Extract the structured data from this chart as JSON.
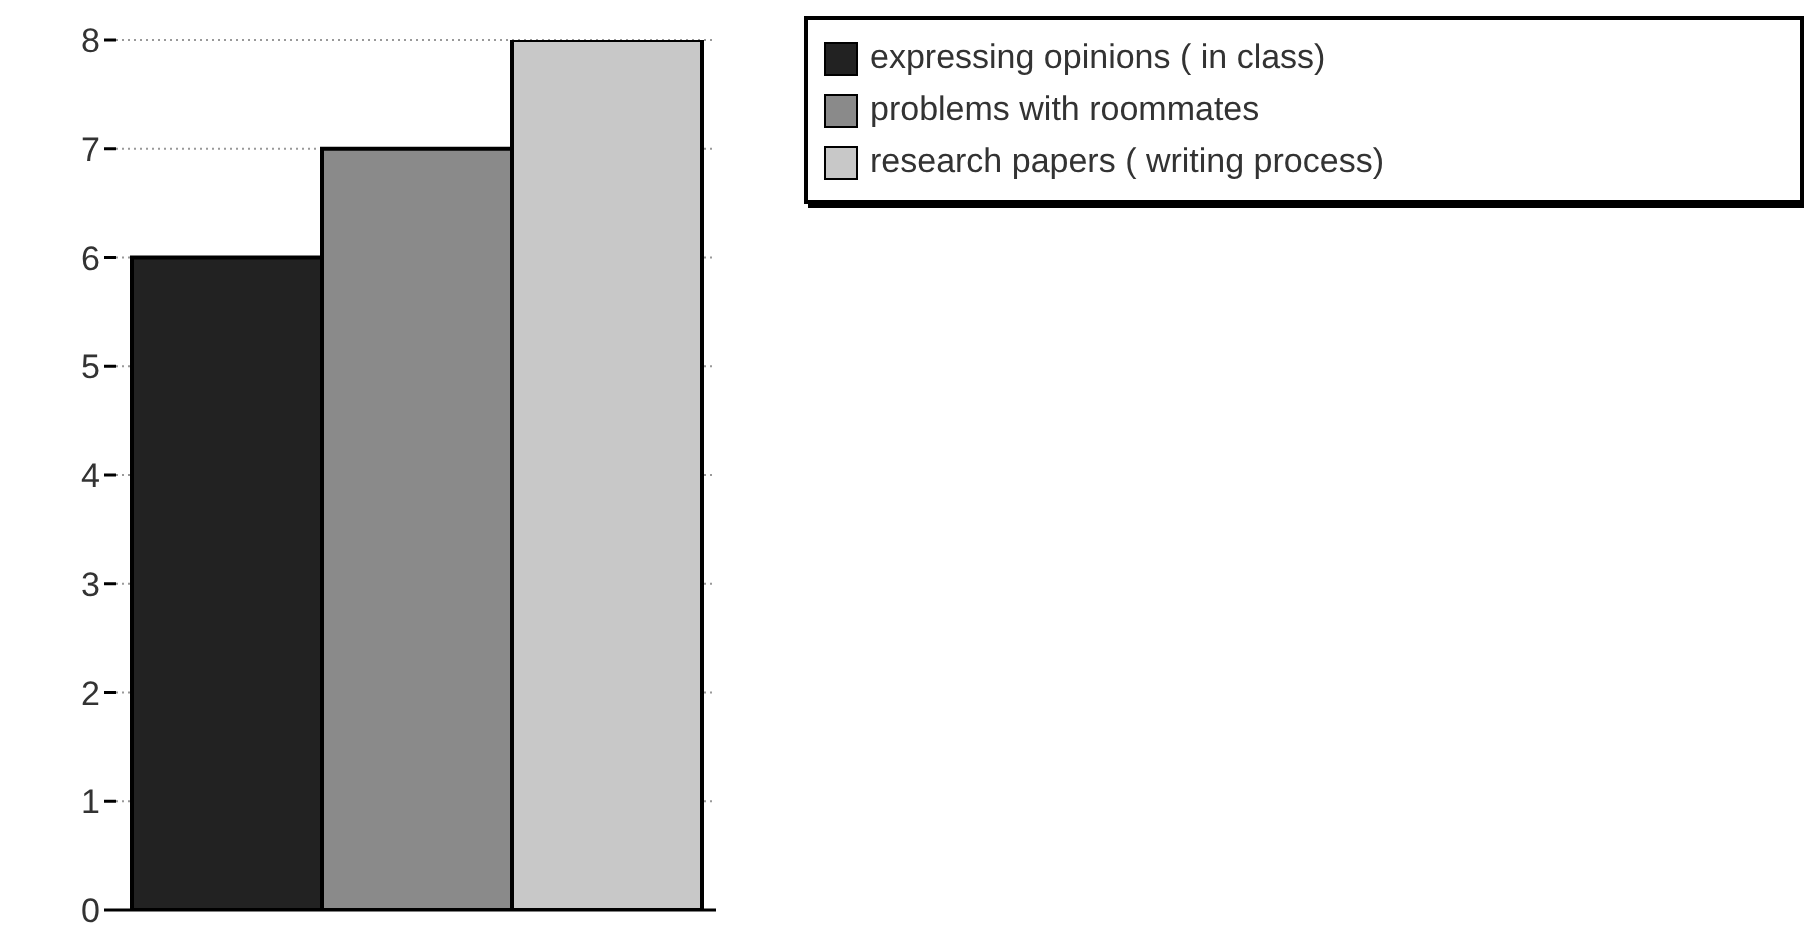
{
  "chart_data": {
    "type": "bar",
    "categories": [
      null
    ],
    "series": [
      {
        "name": "expressing opinions ( in class)",
        "color": "#222222",
        "values": [
          6
        ]
      },
      {
        "name": "problems with roommates",
        "color": "#8a8a8a",
        "values": [
          7
        ]
      },
      {
        "name": "research papers ( writing process)",
        "color": "#c8c8c8",
        "values": [
          8
        ]
      }
    ],
    "ylim": [
      0,
      8
    ],
    "yticks": [
      0,
      1,
      2,
      3,
      4,
      5,
      6,
      7,
      8
    ],
    "grid": "y",
    "legend": "top right"
  }
}
